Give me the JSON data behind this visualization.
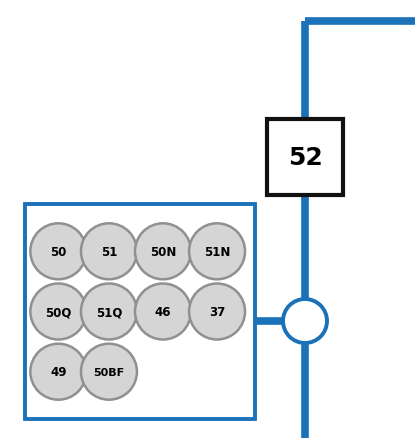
{
  "bg_color": "#ffffff",
  "blue_color": "#1b72b8",
  "line_width": 5.5,
  "circle_fill": "#d5d5d5",
  "circle_edge": "#909090",
  "box_edge": "#111111",
  "relay_box_edge": "#1b72b8",
  "relay_labels": [
    [
      "50",
      "51",
      "50N",
      "51N"
    ],
    [
      "50Q",
      "51Q",
      "46",
      "37"
    ],
    [
      "49",
      "50BF",
      null,
      null
    ]
  ],
  "font_size_circles": 8.5,
  "font_size_52": 18,
  "fig_w": 4.15,
  "fig_h": 4.39,
  "dpi": 100
}
